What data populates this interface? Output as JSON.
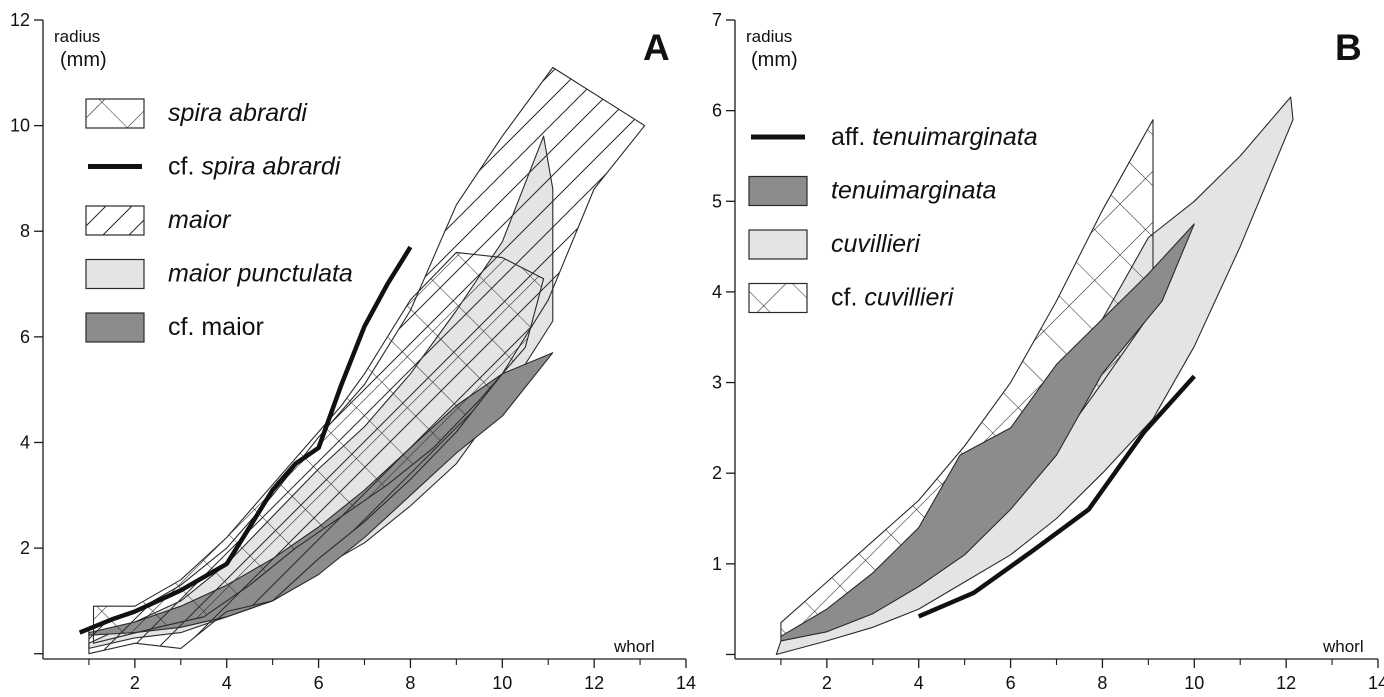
{
  "colors": {
    "axis": "#1a1a1a",
    "outline": "#2a2a2a",
    "light_fill": "#e4e4e4",
    "dark_fill": "#8c8c8c",
    "bold_line": "#111111"
  },
  "chart_data": [
    {
      "type": "area",
      "panel_label": "A",
      "ylabel": "radius\n(mm)",
      "ylabel_lines": [
        "radius",
        "(mm)"
      ],
      "xlabel": "whorl",
      "xlim": [
        0,
        14
      ],
      "ylim": [
        -0.1,
        12
      ],
      "xticks": [
        2,
        4,
        6,
        8,
        10,
        12,
        14
      ],
      "yticks": [
        2,
        4,
        6,
        8,
        10,
        12
      ],
      "grid": false,
      "legend_position": "top-left",
      "series": [
        {
          "name": "maior punctulata",
          "style": "light",
          "polygon": [
            [
              1,
              0.2
            ],
            [
              2,
              0.6
            ],
            [
              3,
              1.0
            ],
            [
              4,
              1.7
            ],
            [
              5,
              2.6
            ],
            [
              6,
              3.5
            ],
            [
              7,
              4.3
            ],
            [
              8,
              5.3
            ],
            [
              9,
              6.5
            ],
            [
              10,
              7.8
            ],
            [
              10.9,
              9.8
            ],
            [
              11.1,
              8.8
            ],
            [
              11.1,
              6.3
            ],
            [
              10,
              4.8
            ],
            [
              9,
              3.6
            ],
            [
              8,
              2.8
            ],
            [
              7,
              2.1
            ],
            [
              6,
              1.6
            ],
            [
              5,
              1.0
            ],
            [
              4,
              0.7
            ],
            [
              3,
              0.4
            ],
            [
              2,
              0.3
            ],
            [
              1,
              0.1
            ]
          ]
        },
        {
          "name": "cf. maior",
          "style": "dark",
          "polygon": [
            [
              1,
              0.4
            ],
            [
              2,
              0.6
            ],
            [
              3,
              0.9
            ],
            [
              4,
              1.3
            ],
            [
              5,
              1.8
            ],
            [
              6,
              2.4
            ],
            [
              7,
              3.1
            ],
            [
              8,
              3.9
            ],
            [
              9,
              4.7
            ],
            [
              10,
              5.3
            ],
            [
              11.1,
              5.7
            ],
            [
              10,
              4.5
            ],
            [
              9,
              3.8
            ],
            [
              8,
              3.0
            ],
            [
              7,
              2.2
            ],
            [
              6,
              1.5
            ],
            [
              5,
              1.0
            ],
            [
              4,
              0.7
            ],
            [
              3,
              0.5
            ],
            [
              2,
              0.4
            ],
            [
              1,
              0.35
            ]
          ]
        },
        {
          "name": "spira abrardi",
          "style": "crosshatch",
          "polygon": [
            [
              6.5,
              4.7
            ],
            [
              7,
              5.3
            ],
            [
              8,
              6.7
            ],
            [
              9,
              7.6
            ],
            [
              10,
              7.5
            ],
            [
              10.9,
              7.1
            ],
            [
              10.5,
              5.8
            ],
            [
              9.5,
              4.8
            ],
            [
              8.5,
              3.9
            ],
            [
              7.5,
              3.2
            ],
            [
              6.5,
              2.6
            ],
            [
              5.5,
              2.0
            ],
            [
              4.5,
              1.3
            ],
            [
              3.5,
              0.7
            ],
            [
              2.5,
              0.5
            ],
            [
              1.1,
              0.2
            ],
            [
              1.1,
              0.9
            ],
            [
              2,
              0.9
            ],
            [
              3,
              1.4
            ],
            [
              4,
              2.2
            ],
            [
              5,
              3.2
            ],
            [
              6,
              4.2
            ]
          ]
        },
        {
          "name": "maior",
          "style": "hatch",
          "polygon": [
            [
              1,
              0.5
            ],
            [
              2,
              0.8
            ],
            [
              3,
              1.3
            ],
            [
              4,
              2.0
            ],
            [
              5,
              3.0
            ],
            [
              6,
              4.1
            ],
            [
              7,
              5.1
            ],
            [
              8,
              6.5
            ],
            [
              9,
              8.5
            ],
            [
              10,
              9.8
            ],
            [
              11.1,
              11.1
            ],
            [
              13.1,
              10.0
            ],
            [
              12,
              8.8
            ],
            [
              11,
              6.7
            ],
            [
              10,
              5.3
            ],
            [
              9,
              4.2
            ],
            [
              8,
              3.3
            ],
            [
              7,
              2.5
            ],
            [
              6,
              1.8
            ],
            [
              5,
              1.0
            ],
            [
              4,
              0.8
            ],
            [
              3,
              0.1
            ],
            [
              2,
              0.2
            ],
            [
              1,
              0.0
            ]
          ]
        },
        {
          "name": "cf. spira abrardi",
          "style": "bold-line",
          "points": [
            [
              0.8,
              0.4
            ],
            [
              1.5,
              0.65
            ],
            [
              2,
              0.8
            ],
            [
              3,
              1.2
            ],
            [
              4,
              1.7
            ],
            [
              4.5,
              2.4
            ],
            [
              5,
              3.1
            ],
            [
              5.5,
              3.6
            ],
            [
              6,
              3.9
            ],
            [
              6.5,
              5.1
            ],
            [
              7,
              6.2
            ],
            [
              7.5,
              7.0
            ],
            [
              8,
              7.7
            ]
          ]
        }
      ],
      "legend": [
        {
          "style": "crosshatch",
          "prefix": "",
          "name": "spira abrardi"
        },
        {
          "style": "bold-line",
          "prefix": "cf. ",
          "name": "spira abrardi"
        },
        {
          "style": "hatch",
          "prefix": "",
          "name": "maior"
        },
        {
          "style": "light",
          "prefix": "",
          "name": "maior punctulata"
        },
        {
          "style": "dark",
          "prefix": "cf. maior",
          "name": ""
        }
      ]
    },
    {
      "type": "area",
      "panel_label": "B",
      "ylabel": "radius\n(mm)",
      "ylabel_lines": [
        "radius",
        "(mm)"
      ],
      "xlabel": "whorl",
      "xlim": [
        0,
        14
      ],
      "ylim": [
        -0.05,
        7
      ],
      "xticks": [
        2,
        4,
        6,
        8,
        10,
        12,
        14
      ],
      "yticks": [
        1,
        2,
        3,
        4,
        5,
        6,
        7
      ],
      "grid": false,
      "legend_position": "top-left",
      "series": [
        {
          "name": "cuvillieri",
          "style": "light",
          "polygon": [
            [
              1,
              0.15
            ],
            [
              2,
              0.35
            ],
            [
              3,
              0.7
            ],
            [
              4,
              1.1
            ],
            [
              5,
              1.6
            ],
            [
              6,
              2.1
            ],
            [
              7,
              2.8
            ],
            [
              8,
              3.7
            ],
            [
              9,
              4.6
            ],
            [
              10,
              5.0
            ],
            [
              11,
              5.5
            ],
            [
              12.1,
              6.15
            ],
            [
              12.15,
              5.9
            ],
            [
              11,
              4.5
            ],
            [
              10,
              3.4
            ],
            [
              9.1,
              2.6
            ],
            [
              8,
              2.0
            ],
            [
              7,
              1.5
            ],
            [
              6,
              1.1
            ],
            [
              5,
              0.8
            ],
            [
              4,
              0.5
            ],
            [
              3,
              0.3
            ],
            [
              2,
              0.15
            ],
            [
              0.9,
              0.0
            ]
          ]
        },
        {
          "name": "cf. cuvillieri",
          "style": "crosshatch",
          "polygon": [
            [
              1,
              0.35
            ],
            [
              2,
              0.8
            ],
            [
              3,
              1.25
            ],
            [
              4,
              1.7
            ],
            [
              5,
              2.3
            ],
            [
              6,
              3.0
            ],
            [
              7,
              3.9
            ],
            [
              8,
              4.9
            ],
            [
              9.1,
              5.9
            ],
            [
              9.1,
              3.8
            ],
            [
              8,
              3.0
            ],
            [
              7,
              2.3
            ],
            [
              6,
              1.7
            ],
            [
              5,
              1.2
            ],
            [
              4,
              0.8
            ],
            [
              3,
              0.5
            ],
            [
              2,
              0.3
            ],
            [
              1,
              0.2
            ]
          ]
        },
        {
          "name": "tenuimarginata",
          "style": "dark",
          "polygon": [
            [
              1,
              0.2
            ],
            [
              2,
              0.5
            ],
            [
              3,
              0.9
            ],
            [
              4,
              1.4
            ],
            [
              4.9,
              2.2
            ],
            [
              6,
              2.5
            ],
            [
              7,
              3.2
            ],
            [
              8,
              3.7
            ],
            [
              9,
              4.2
            ],
            [
              10,
              4.75
            ],
            [
              9.3,
              3.9
            ],
            [
              8,
              3.1
            ],
            [
              7,
              2.2
            ],
            [
              6,
              1.6
            ],
            [
              5,
              1.1
            ],
            [
              4,
              0.75
            ],
            [
              3,
              0.45
            ],
            [
              2,
              0.25
            ],
            [
              1,
              0.15
            ]
          ]
        },
        {
          "name": "aff. tenuimarginata",
          "style": "bold-line",
          "points": [
            [
              4,
              0.42
            ],
            [
              5.2,
              0.68
            ],
            [
              6.5,
              1.15
            ],
            [
              7.7,
              1.6
            ],
            [
              8.9,
              2.45
            ],
            [
              10,
              3.07
            ]
          ]
        }
      ],
      "legend": [
        {
          "style": "bold-line",
          "prefix": "aff. ",
          "name": "tenuimarginata"
        },
        {
          "style": "dark",
          "prefix": "",
          "name": "tenuimarginata"
        },
        {
          "style": "light",
          "prefix": "",
          "name": "cuvillieri"
        },
        {
          "style": "crosshatch",
          "prefix": "cf. ",
          "name": "cuvillieri"
        }
      ]
    }
  ]
}
